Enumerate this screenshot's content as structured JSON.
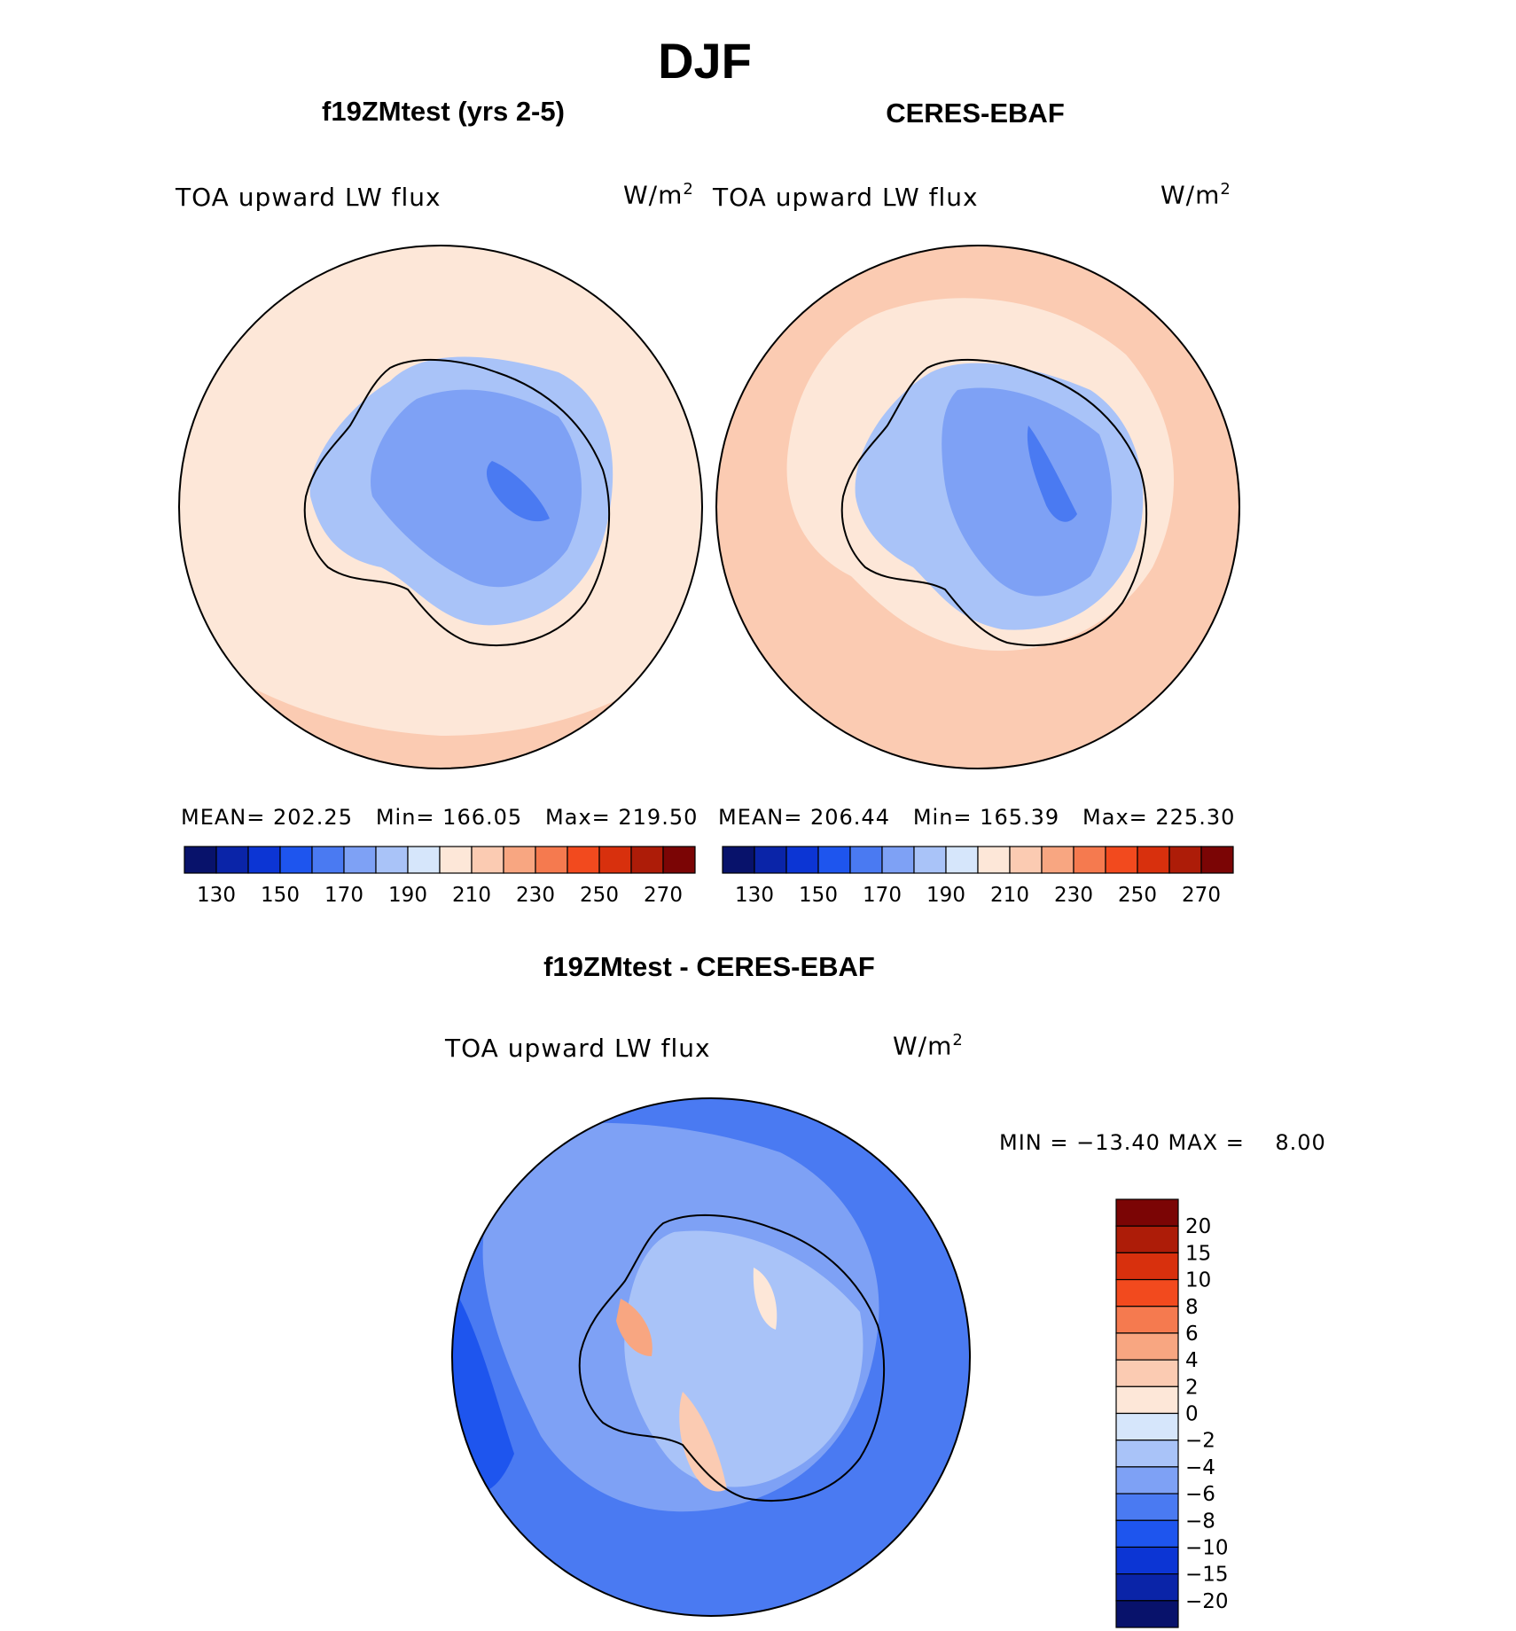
{
  "page": {
    "title": "DJF"
  },
  "panels": {
    "left": {
      "title": "f19ZMtest (yrs 2-5)",
      "variable": "TOA upward LW flux",
      "units_base": "W/m",
      "units_exp": "2",
      "stats": "MEAN= 202.25   Min= 166.05   Max= 219.50"
    },
    "right": {
      "title": "CERES-EBAF",
      "variable": "TOA upward LW flux",
      "units_base": "W/m",
      "units_exp": "2",
      "stats": "MEAN= 206.44   Min= 165.39   Max= 225.30"
    },
    "diff": {
      "title": "f19ZMtest - CERES-EBAF",
      "variable": "TOA upward LW flux",
      "units_base": "W/m",
      "units_exp": "2",
      "stats": "MIN = −13.40 MAX =    8.00"
    }
  },
  "chart_data": [
    {
      "type": "heatmap",
      "projection": "south-polar-stereographic",
      "title": "f19ZMtest (yrs 2-5)",
      "variable": "TOA upward LW flux",
      "units": "W/m^2",
      "mean": 202.25,
      "min": 166.05,
      "max": 219.5,
      "contour_levels": [
        130,
        140,
        150,
        160,
        170,
        180,
        190,
        200,
        210,
        220,
        230,
        240,
        250,
        260,
        270
      ],
      "tick_labels": [
        "130",
        "150",
        "170",
        "190",
        "210",
        "230",
        "250",
        "270"
      ],
      "colors": [
        "#08126b",
        "#0a24a8",
        "#0c35d4",
        "#1e55ee",
        "#4a7af2",
        "#7ea1f5",
        "#a9c3f8",
        "#d6e6fb",
        "#fde7d8",
        "#fbcbb2",
        "#f8a681",
        "#f57a4f",
        "#f24a1e",
        "#d8300d",
        "#ad1c08",
        "#7b0505"
      ]
    },
    {
      "type": "heatmap",
      "projection": "south-polar-stereographic",
      "title": "CERES-EBAF",
      "variable": "TOA upward LW flux",
      "units": "W/m^2",
      "mean": 206.44,
      "min": 165.39,
      "max": 225.3,
      "contour_levels": [
        130,
        140,
        150,
        160,
        170,
        180,
        190,
        200,
        210,
        220,
        230,
        240,
        250,
        260,
        270
      ],
      "tick_labels": [
        "130",
        "150",
        "170",
        "190",
        "210",
        "230",
        "250",
        "270"
      ],
      "colors": [
        "#08126b",
        "#0a24a8",
        "#0c35d4",
        "#1e55ee",
        "#4a7af2",
        "#7ea1f5",
        "#a9c3f8",
        "#d6e6fb",
        "#fde7d8",
        "#fbcbb2",
        "#f8a681",
        "#f57a4f",
        "#f24a1e",
        "#d8300d",
        "#ad1c08",
        "#7b0505"
      ]
    },
    {
      "type": "heatmap",
      "projection": "south-polar-stereographic",
      "title": "f19ZMtest - CERES-EBAF",
      "variable": "TOA upward LW flux",
      "units": "W/m^2",
      "min": -13.4,
      "max": 8.0,
      "contour_levels": [
        -20,
        -15,
        -10,
        -8,
        -6,
        -4,
        -2,
        0,
        2,
        4,
        6,
        8,
        10,
        15,
        20
      ],
      "tick_labels": [
        "20",
        "15",
        "10",
        "8",
        "6",
        "4",
        "2",
        "0",
        "−2",
        "−4",
        "−6",
        "−8",
        "−10",
        "−15",
        "−20"
      ],
      "colors": [
        "#7b0505",
        "#ad1c08",
        "#d8300d",
        "#f24a1e",
        "#f57a4f",
        "#f8a681",
        "#fbcbb2",
        "#fde7d8",
        "#d6e6fb",
        "#a9c3f8",
        "#7ea1f5",
        "#4a7af2",
        "#1e55ee",
        "#0c35d4",
        "#0a24a8",
        "#08126b"
      ]
    }
  ]
}
